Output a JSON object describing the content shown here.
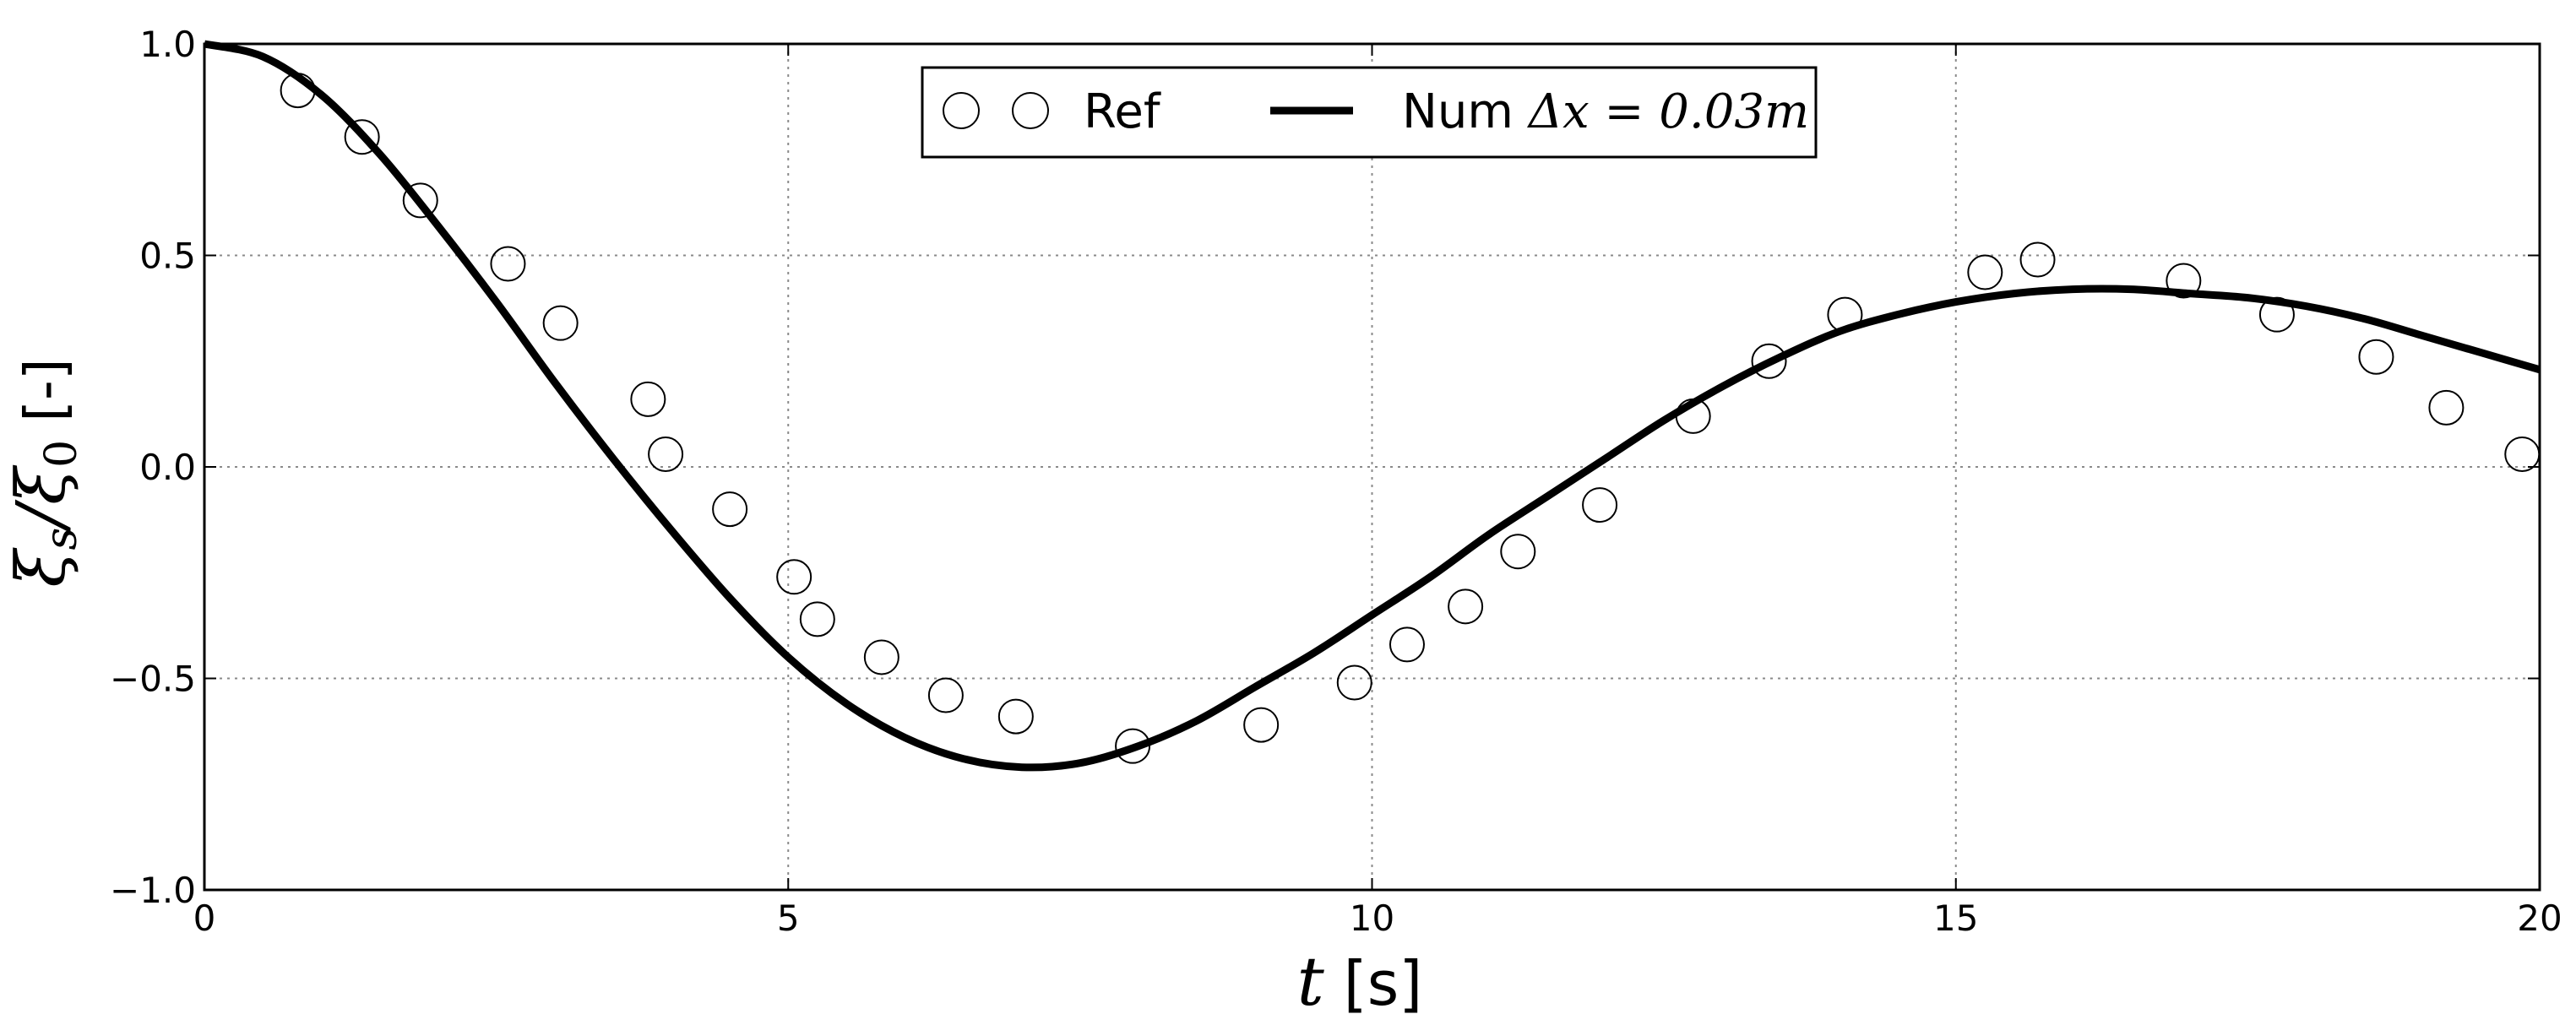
{
  "chart_data": {
    "type": "line",
    "xlim": [
      0,
      20
    ],
    "ylim": [
      -1.0,
      1.0
    ],
    "grid": true,
    "legend_position": "top-center",
    "x_ticks": [
      "0",
      "5",
      "10",
      "15",
      "20"
    ],
    "x_tick_values": [
      0,
      5,
      10,
      15,
      20
    ],
    "y_ticks": [
      "1.0",
      "0.5",
      "0.0",
      "−0.5",
      "−1.0"
    ],
    "y_tick_values": [
      1.0,
      0.5,
      0.0,
      -0.5,
      -1.0
    ],
    "xlabel": {
      "var": "t",
      "unit": " [s]"
    },
    "ylabel": {
      "var": "ξ",
      "sub": "s",
      "sep": "/ξ",
      "sub2": "0",
      "unit": "  [-]"
    },
    "legend": {
      "ref_label": "Ref",
      "num_label_prefix": "Num ",
      "num_label_math": "Δx = 0.03m"
    },
    "series": [
      {
        "name": "Ref",
        "style": "open-circle-markers",
        "color": "#000000",
        "x": [
          0.8,
          1.35,
          1.85,
          2.6,
          3.05,
          3.8,
          3.95,
          4.5,
          5.05,
          5.25,
          5.8,
          6.35,
          6.95,
          7.95,
          9.05,
          9.85,
          10.3,
          10.8,
          11.25,
          11.95,
          12.75,
          13.4,
          14.05,
          15.25,
          15.7,
          16.95,
          17.75,
          18.6,
          19.2,
          19.85
        ],
        "y": [
          0.89,
          0.78,
          0.63,
          0.48,
          0.34,
          0.16,
          0.03,
          -0.1,
          -0.26,
          -0.36,
          -0.45,
          -0.54,
          -0.59,
          -0.66,
          -0.61,
          -0.51,
          -0.42,
          -0.33,
          -0.2,
          -0.09,
          0.12,
          0.25,
          0.36,
          0.46,
          0.49,
          0.44,
          0.36,
          0.26,
          0.14,
          0.03
        ]
      },
      {
        "name": "Num",
        "style": "solid-line",
        "color": "#000000",
        "x": [
          0,
          0.5,
          1.0,
          1.5,
          2.0,
          2.5,
          3.0,
          3.5,
          4.0,
          4.5,
          5.0,
          5.5,
          6.0,
          6.5,
          7.0,
          7.5,
          8.0,
          8.5,
          9.0,
          9.5,
          10.0,
          10.5,
          11.0,
          11.5,
          12.0,
          12.5,
          13.0,
          13.5,
          14.0,
          14.5,
          15.0,
          15.5,
          16.0,
          16.5,
          17.0,
          17.5,
          18.0,
          18.5,
          19.0,
          19.5,
          20.0
        ],
        "y": [
          1.0,
          0.97,
          0.88,
          0.74,
          0.57,
          0.39,
          0.2,
          0.02,
          -0.15,
          -0.31,
          -0.45,
          -0.56,
          -0.64,
          -0.69,
          -0.71,
          -0.7,
          -0.66,
          -0.6,
          -0.52,
          -0.44,
          -0.35,
          -0.26,
          -0.16,
          -0.07,
          0.02,
          0.11,
          0.19,
          0.26,
          0.32,
          0.36,
          0.39,
          0.41,
          0.42,
          0.42,
          0.41,
          0.4,
          0.38,
          0.35,
          0.31,
          0.27,
          0.23
        ]
      }
    ]
  }
}
